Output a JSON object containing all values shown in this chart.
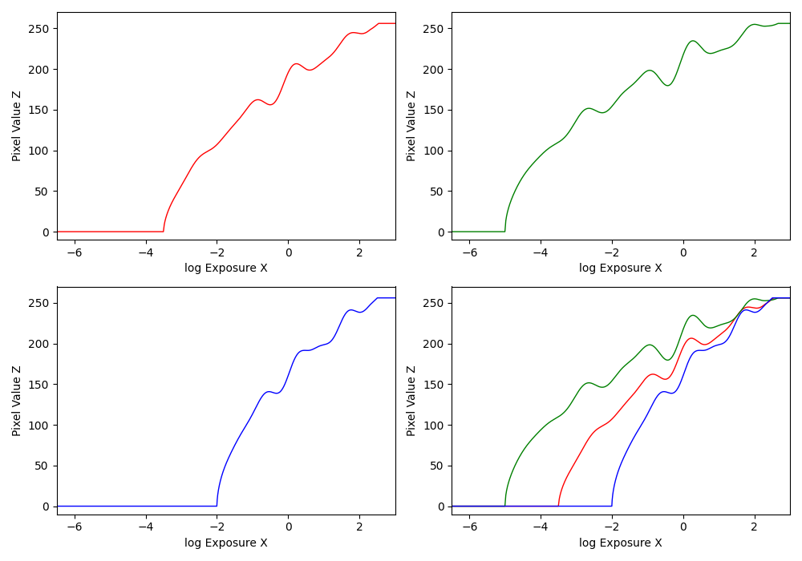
{
  "xlabel": "log Exposure X",
  "ylabel": "Pixel Value Z",
  "xlim": [
    -6.5,
    3.0
  ],
  "ylim": [
    -10,
    270
  ],
  "xticks": [
    -6,
    -4,
    -2,
    0,
    2
  ],
  "yticks": [
    0,
    50,
    100,
    150,
    200,
    250
  ],
  "colors": {
    "red": "red",
    "green": "green",
    "blue": "blue"
  },
  "figsize": [
    10.0,
    7.0
  ],
  "dpi": 100
}
